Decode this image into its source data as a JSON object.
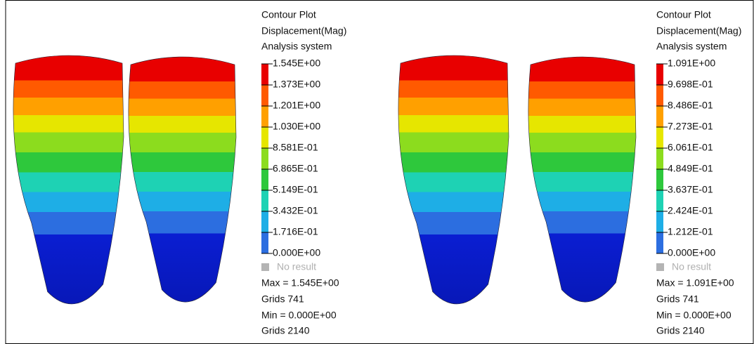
{
  "panels": [
    {
      "legend": {
        "title": "Contour Plot",
        "subtitle": "Displacement(Mag)",
        "system": "Analysis system",
        "levels": [
          "1.545E+00",
          "1.373E+00",
          "1.201E+00",
          "1.030E+00",
          "8.581E-01",
          "6.865E-01",
          "5.149E-01",
          "3.432E-01",
          "1.716E-01",
          "0.000E+00"
        ],
        "no_result": "No result",
        "max": "Max = 1.545E+00",
        "max_grids": "Grids 741",
        "min": "Min = 0.000E+00",
        "min_grids": "Grids 2140"
      }
    },
    {
      "legend": {
        "title": "Contour Plot",
        "subtitle": "Displacement(Mag)",
        "system": "Analysis system",
        "levels": [
          "1.091E+00",
          "9.698E-01",
          "8.486E-01",
          "7.273E-01",
          "6.061E-01",
          "4.849E-01",
          "3.637E-01",
          "2.424E-01",
          "1.212E-01",
          "0.000E+00"
        ],
        "no_result": "No result",
        "max": "Max = 1.091E+00",
        "max_grids": "Grids 741",
        "min": "Min = 0.000E+00",
        "min_grids": "Grids 2140"
      }
    }
  ]
}
